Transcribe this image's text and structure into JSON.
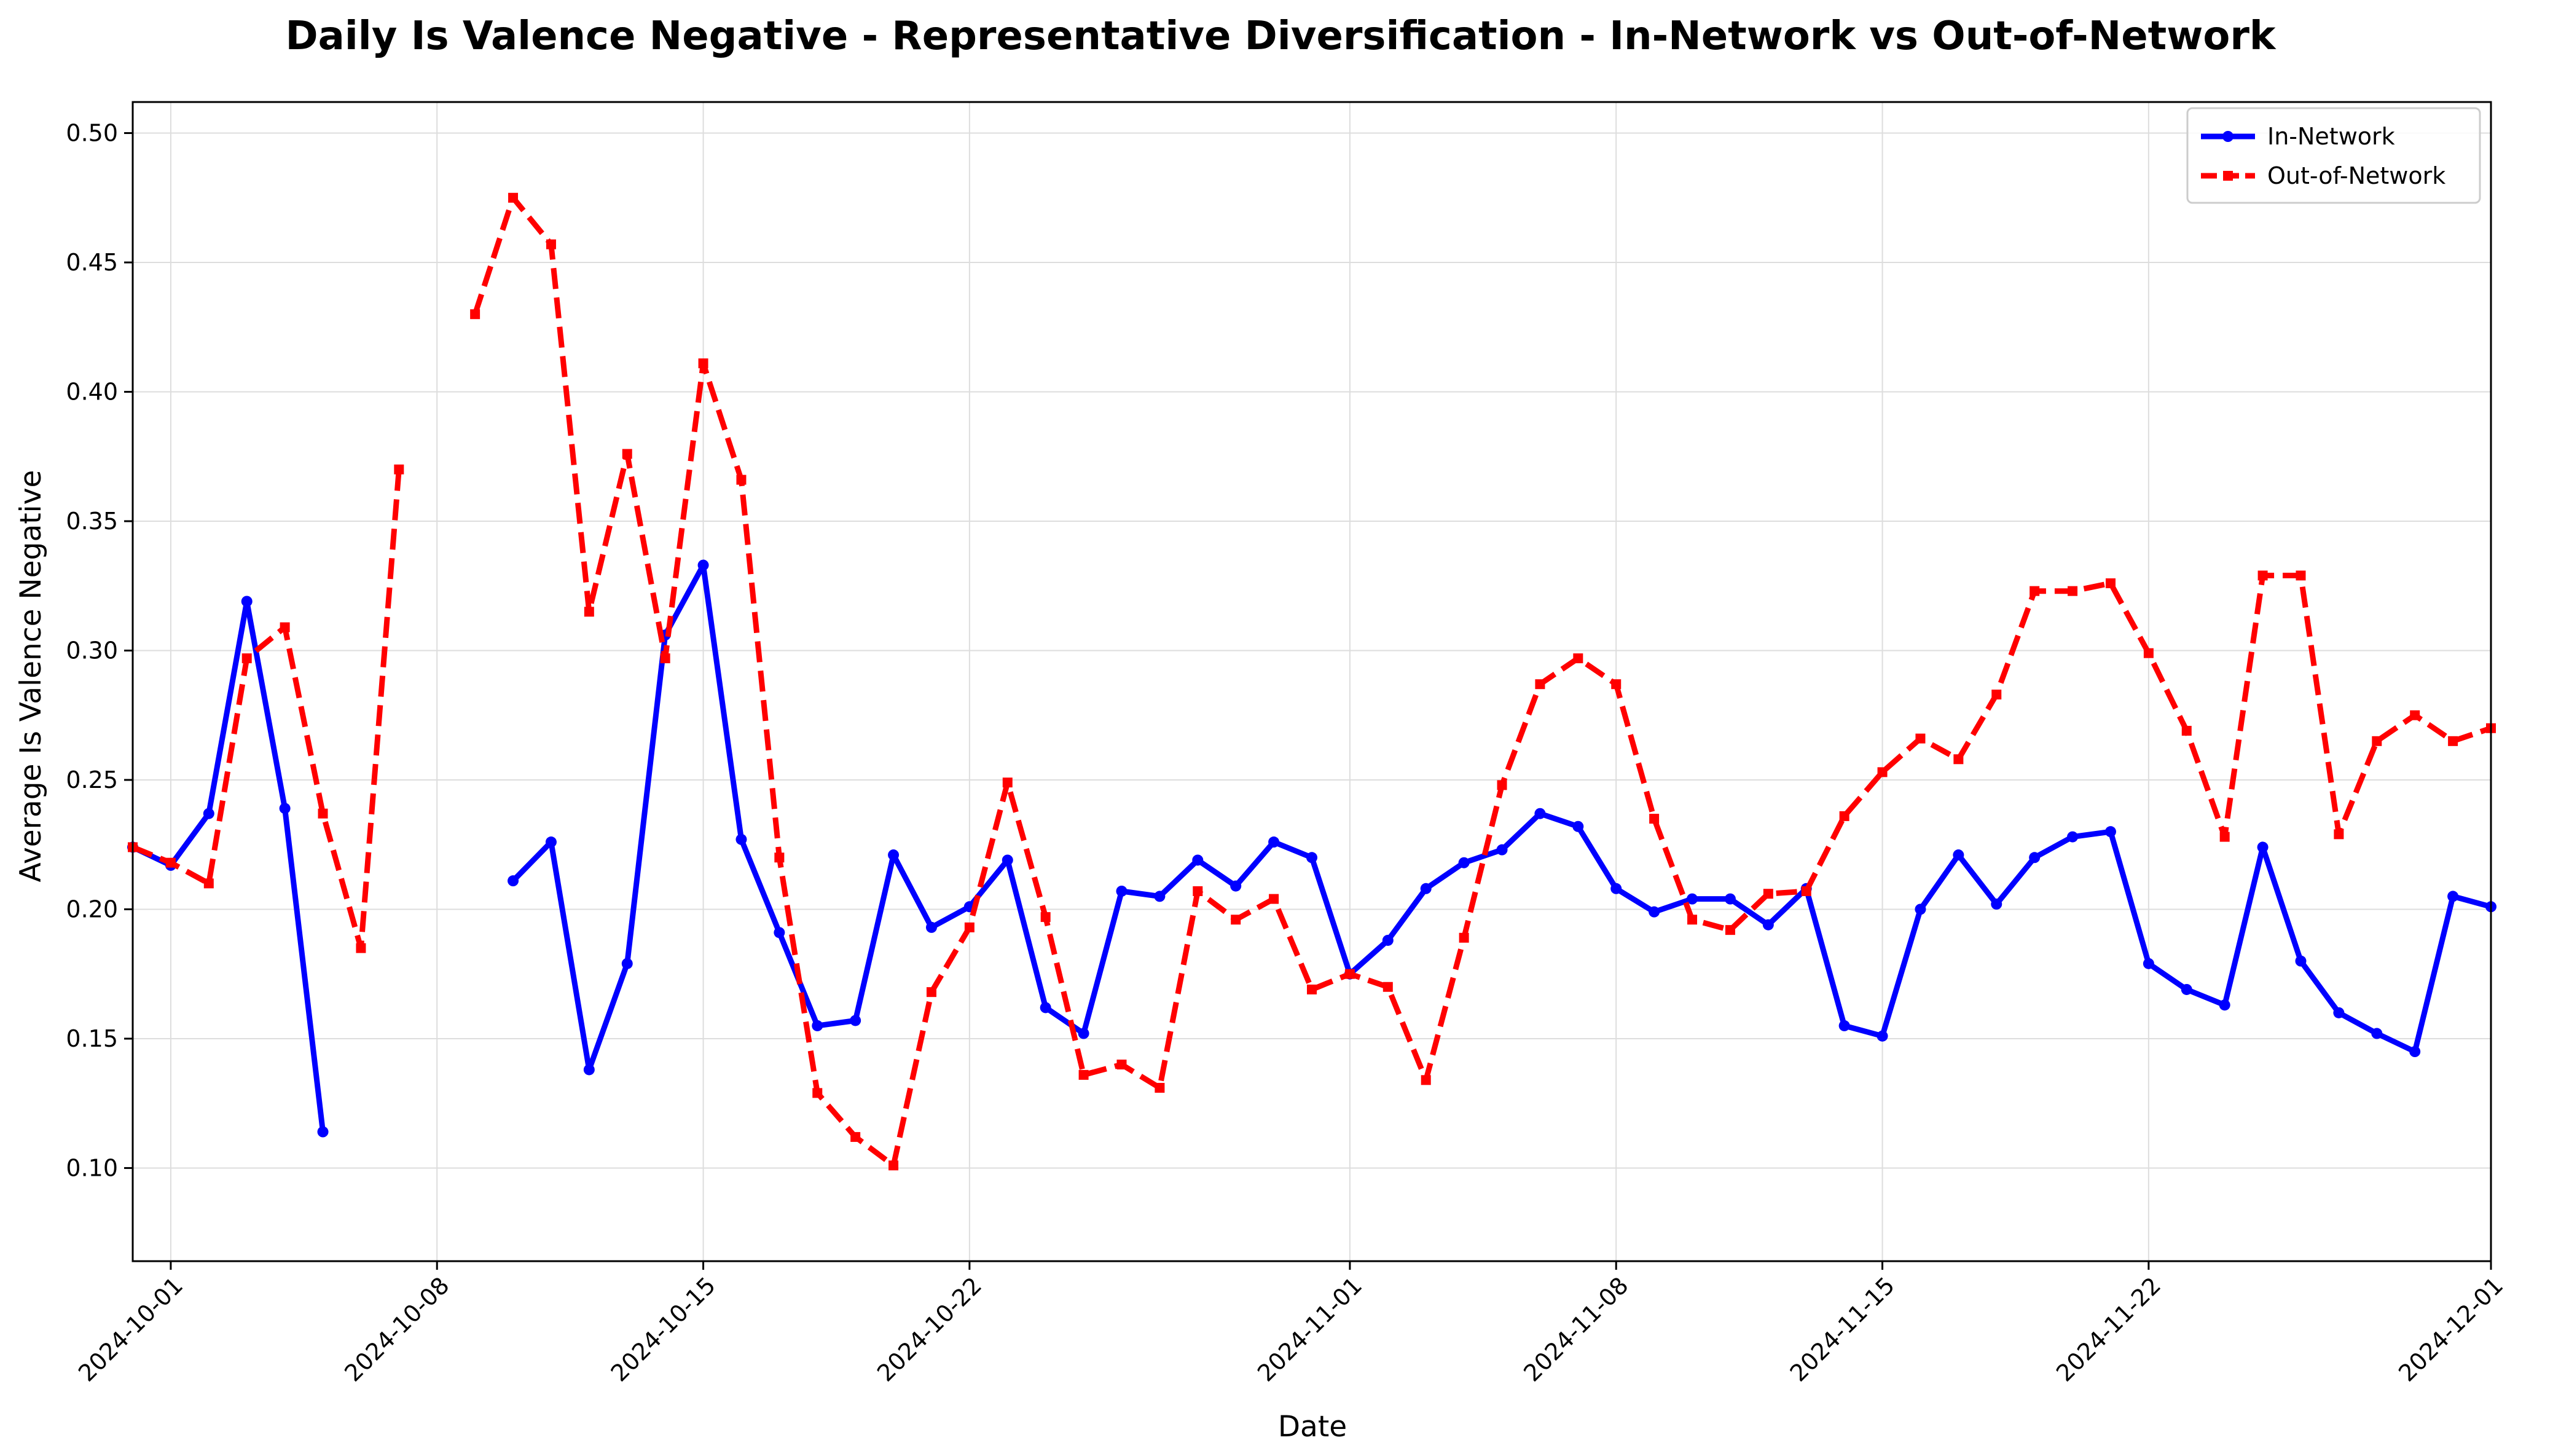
{
  "chart_data": {
    "type": "line",
    "title": "Daily Is Valence Negative - Representative Diversification - In-Network vs Out-of-Network",
    "xlabel": "Date",
    "ylabel": "Average Is Valence Negative",
    "x_ticks": [
      "2024-10-01",
      "2024-10-08",
      "2024-10-15",
      "2024-10-22",
      "2024-11-01",
      "2024-11-08",
      "2024-11-15",
      "2024-11-22",
      "2024-12-01"
    ],
    "y_ticks": [
      "0.10",
      "0.15",
      "0.20",
      "0.25",
      "0.30",
      "0.35",
      "0.40",
      "0.45",
      "0.50"
    ],
    "xlim": [
      "2024-09-30",
      "2024-12-01"
    ],
    "ylim": [
      0.064,
      0.512
    ],
    "grid": true,
    "legend_position": "upper right",
    "series": [
      {
        "name": "In-Network",
        "color": "#0000ff",
        "line_style": "solid",
        "marker": "circle",
        "points": [
          [
            "2024-09-30",
            0.224
          ],
          [
            "2024-10-01",
            0.217
          ],
          [
            "2024-10-02",
            0.237
          ],
          [
            "2024-10-03",
            0.319
          ],
          [
            "2024-10-04",
            0.239
          ],
          [
            "2024-10-05",
            0.114
          ],
          [
            "2024-10-10",
            0.211
          ],
          [
            "2024-10-11",
            0.226
          ],
          [
            "2024-10-12",
            0.138
          ],
          [
            "2024-10-13",
            0.179
          ],
          [
            "2024-10-14",
            0.306
          ],
          [
            "2024-10-15",
            0.333
          ],
          [
            "2024-10-16",
            0.227
          ],
          [
            "2024-10-17",
            0.191
          ],
          [
            "2024-10-18",
            0.155
          ],
          [
            "2024-10-19",
            0.157
          ],
          [
            "2024-10-20",
            0.221
          ],
          [
            "2024-10-21",
            0.193
          ],
          [
            "2024-10-22",
            0.201
          ],
          [
            "2024-10-23",
            0.219
          ],
          [
            "2024-10-24",
            0.162
          ],
          [
            "2024-10-25",
            0.152
          ],
          [
            "2024-10-26",
            0.207
          ],
          [
            "2024-10-27",
            0.205
          ],
          [
            "2024-10-28",
            0.219
          ],
          [
            "2024-10-29",
            0.209
          ],
          [
            "2024-10-30",
            0.226
          ],
          [
            "2024-10-31",
            0.22
          ],
          [
            "2024-11-01",
            0.175
          ],
          [
            "2024-11-02",
            0.188
          ],
          [
            "2024-11-03",
            0.208
          ],
          [
            "2024-11-04",
            0.218
          ],
          [
            "2024-11-05",
            0.223
          ],
          [
            "2024-11-06",
            0.237
          ],
          [
            "2024-11-07",
            0.232
          ],
          [
            "2024-11-08",
            0.208
          ],
          [
            "2024-11-09",
            0.199
          ],
          [
            "2024-11-10",
            0.204
          ],
          [
            "2024-11-11",
            0.204
          ],
          [
            "2024-11-12",
            0.194
          ],
          [
            "2024-11-13",
            0.208
          ],
          [
            "2024-11-14",
            0.155
          ],
          [
            "2024-11-15",
            0.151
          ],
          [
            "2024-11-16",
            0.2
          ],
          [
            "2024-11-17",
            0.221
          ],
          [
            "2024-11-18",
            0.202
          ],
          [
            "2024-11-19",
            0.22
          ],
          [
            "2024-11-20",
            0.228
          ],
          [
            "2024-11-21",
            0.23
          ],
          [
            "2024-11-22",
            0.179
          ],
          [
            "2024-11-23",
            0.169
          ],
          [
            "2024-11-24",
            0.163
          ],
          [
            "2024-11-25",
            0.224
          ],
          [
            "2024-11-26",
            0.18
          ],
          [
            "2024-11-27",
            0.16
          ],
          [
            "2024-11-28",
            0.152
          ],
          [
            "2024-11-29",
            0.145
          ],
          [
            "2024-11-30",
            0.205
          ],
          [
            "2024-12-01",
            0.201
          ]
        ]
      },
      {
        "name": "Out-of-Network",
        "color": "#ff0000",
        "line_style": "dashed",
        "marker": "square",
        "points": [
          [
            "2024-09-30",
            0.224
          ],
          [
            "2024-10-01",
            0.218
          ],
          [
            "2024-10-02",
            0.21
          ],
          [
            "2024-10-03",
            0.297
          ],
          [
            "2024-10-04",
            0.309
          ],
          [
            "2024-10-05",
            0.237
          ],
          [
            "2024-10-06",
            0.185
          ],
          [
            "2024-10-07",
            0.37
          ],
          [
            "2024-10-09",
            0.43
          ],
          [
            "2024-10-10",
            0.475
          ],
          [
            "2024-10-11",
            0.457
          ],
          [
            "2024-10-12",
            0.315
          ],
          [
            "2024-10-13",
            0.376
          ],
          [
            "2024-10-14",
            0.297
          ],
          [
            "2024-10-15",
            0.411
          ],
          [
            "2024-10-16",
            0.366
          ],
          [
            "2024-10-17",
            0.22
          ],
          [
            "2024-10-18",
            0.129
          ],
          [
            "2024-10-19",
            0.112
          ],
          [
            "2024-10-20",
            0.101
          ],
          [
            "2024-10-21",
            0.168
          ],
          [
            "2024-10-22",
            0.193
          ],
          [
            "2024-10-23",
            0.249
          ],
          [
            "2024-10-24",
            0.197
          ],
          [
            "2024-10-25",
            0.136
          ],
          [
            "2024-10-26",
            0.14
          ],
          [
            "2024-10-27",
            0.131
          ],
          [
            "2024-10-28",
            0.207
          ],
          [
            "2024-10-29",
            0.196
          ],
          [
            "2024-10-30",
            0.204
          ],
          [
            "2024-10-31",
            0.169
          ],
          [
            "2024-11-01",
            0.175
          ],
          [
            "2024-11-02",
            0.17
          ],
          [
            "2024-11-03",
            0.134
          ],
          [
            "2024-11-04",
            0.189
          ],
          [
            "2024-11-05",
            0.248
          ],
          [
            "2024-11-06",
            0.287
          ],
          [
            "2024-11-07",
            0.297
          ],
          [
            "2024-11-08",
            0.287
          ],
          [
            "2024-11-09",
            0.235
          ],
          [
            "2024-11-10",
            0.196
          ],
          [
            "2024-11-11",
            0.192
          ],
          [
            "2024-11-12",
            0.206
          ],
          [
            "2024-11-13",
            0.207
          ],
          [
            "2024-11-14",
            0.236
          ],
          [
            "2024-11-15",
            0.253
          ],
          [
            "2024-11-16",
            0.266
          ],
          [
            "2024-11-17",
            0.258
          ],
          [
            "2024-11-18",
            0.283
          ],
          [
            "2024-11-19",
            0.323
          ],
          [
            "2024-11-20",
            0.323
          ],
          [
            "2024-11-21",
            0.326
          ],
          [
            "2024-11-22",
            0.299
          ],
          [
            "2024-11-23",
            0.269
          ],
          [
            "2024-11-24",
            0.228
          ],
          [
            "2024-11-25",
            0.329
          ],
          [
            "2024-11-26",
            0.329
          ],
          [
            "2024-11-27",
            0.229
          ],
          [
            "2024-11-28",
            0.265
          ],
          [
            "2024-11-29",
            0.275
          ],
          [
            "2024-11-30",
            0.265
          ],
          [
            "2024-12-01",
            0.27
          ]
        ]
      }
    ]
  }
}
